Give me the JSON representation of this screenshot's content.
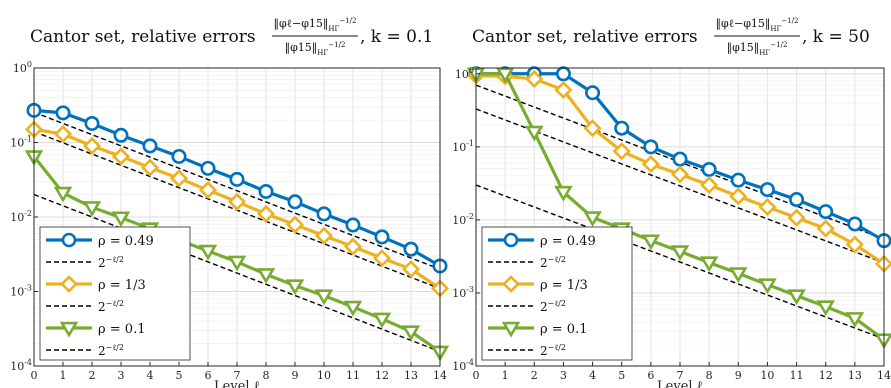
{
  "chart_data": [
    {
      "type": "line",
      "title": {
        "prefix": "Cantor set, relative errors",
        "numerator": "‖φℓ−φ15‖",
        "denominator": "‖φ15‖",
        "norm_subscript": "HΓ",
        "norm_superscript": "−1/2",
        "suffix": ", k = 0.1"
      },
      "xlabel": "Level ℓ",
      "ylabel": "",
      "xlim": [
        0,
        14
      ],
      "ylim": [
        0.0001,
        1
      ],
      "yscale": "log",
      "x_ticks": [
        0,
        1,
        2,
        3,
        4,
        5,
        6,
        7,
        8,
        9,
        10,
        11,
        12,
        13,
        14
      ],
      "y_ticks": [
        {
          "value": 0.0001,
          "base": "10",
          "exp": "-4"
        },
        {
          "value": 0.001,
          "base": "10",
          "exp": "-3"
        },
        {
          "value": 0.01,
          "base": "10",
          "exp": "-2"
        },
        {
          "value": 0.1,
          "base": "10",
          "exp": "-1"
        },
        {
          "value": 1,
          "base": "10",
          "exp": "0"
        }
      ],
      "grid": true,
      "legend_position": "bottom-left",
      "x": [
        0,
        1,
        2,
        3,
        4,
        5,
        6,
        7,
        8,
        9,
        10,
        11,
        12,
        13,
        14
      ],
      "series": [
        {
          "name": "ρ = 0.49",
          "color": "#0072BD",
          "marker": "circle",
          "values": [
            0.27,
            0.25,
            0.18,
            0.125,
            0.09,
            0.065,
            0.045,
            0.032,
            0.022,
            0.016,
            0.011,
            0.0078,
            0.0054,
            0.0037,
            0.0022
          ]
        },
        {
          "name": "ρ = 1/3",
          "color": "#EDB120",
          "marker": "diamond",
          "values": [
            0.15,
            0.13,
            0.09,
            0.065,
            0.046,
            0.033,
            0.023,
            0.016,
            0.011,
            0.0079,
            0.0056,
            0.004,
            0.0028,
            0.002,
            0.0011
          ]
        },
        {
          "name": "ρ = 0.1",
          "color": "#77AC30",
          "marker": "triangle-down",
          "values": [
            0.065,
            0.021,
            0.0135,
            0.0098,
            0.007,
            0.0049,
            0.0035,
            0.0025,
            0.0017,
            0.0012,
            0.00088,
            0.00062,
            0.00043,
            0.00029,
            0.000155
          ]
        }
      ],
      "reference_lines": [
        {
          "label": "2^(−ℓ/2)",
          "color": "#000000",
          "dashed": true,
          "c": 0.255
        },
        {
          "label": "2^(−ℓ/2)",
          "color": "#000000",
          "dashed": true,
          "c": 0.14
        },
        {
          "label": "2^(−ℓ/2)",
          "color": "#000000",
          "dashed": true,
          "c": 0.02
        }
      ]
    },
    {
      "type": "line",
      "title": {
        "prefix": "Cantor set, relative errors",
        "numerator": "‖φℓ−φ15‖",
        "denominator": "‖φ15‖",
        "norm_subscript": "HΓ",
        "norm_superscript": "−1/2",
        "suffix": ", k = 50"
      },
      "xlabel": "Level ℓ",
      "ylabel": "",
      "xlim": [
        0,
        14
      ],
      "ylim": [
        0.0001,
        1.2
      ],
      "yscale": "log",
      "x_ticks": [
        0,
        1,
        2,
        3,
        4,
        5,
        6,
        7,
        8,
        9,
        10,
        11,
        12,
        13,
        14
      ],
      "y_ticks": [
        {
          "value": 0.0001,
          "base": "10",
          "exp": "-4"
        },
        {
          "value": 0.001,
          "base": "10",
          "exp": "-3"
        },
        {
          "value": 0.01,
          "base": "10",
          "exp": "-2"
        },
        {
          "value": 0.1,
          "base": "10",
          "exp": "-1"
        },
        {
          "value": 1,
          "base": "10",
          "exp": "0"
        }
      ],
      "grid": true,
      "legend_position": "bottom-left",
      "x": [
        0,
        1,
        2,
        3,
        4,
        5,
        6,
        7,
        8,
        9,
        10,
        11,
        12,
        13,
        14
      ],
      "series": [
        {
          "name": "ρ = 0.49",
          "color": "#0072BD",
          "marker": "circle",
          "values": [
            1.0,
            1.0,
            1.0,
            1.0,
            0.55,
            0.18,
            0.1,
            0.068,
            0.049,
            0.035,
            0.026,
            0.019,
            0.013,
            0.0088,
            0.0052
          ]
        },
        {
          "name": "ρ = 1/3",
          "color": "#EDB120",
          "marker": "diamond",
          "values": [
            0.95,
            0.92,
            0.85,
            0.6,
            0.18,
            0.087,
            0.058,
            0.042,
            0.03,
            0.021,
            0.015,
            0.0107,
            0.0076,
            0.0046,
            0.0025
          ]
        },
        {
          "name": "ρ = 0.1",
          "color": "#77AC30",
          "marker": "triangle-down",
          "values": [
            1.0,
            1.0,
            0.16,
            0.024,
            0.0108,
            0.0076,
            0.0052,
            0.0037,
            0.0026,
            0.00185,
            0.0013,
            0.00092,
            0.00065,
            0.00045,
            0.00023
          ]
        }
      ],
      "reference_lines": [
        {
          "label": "2^(−ℓ/2)",
          "color": "#000000",
          "dashed": true,
          "c": 0.7
        },
        {
          "label": "2^(−ℓ/2)",
          "color": "#000000",
          "dashed": true,
          "c": 0.33
        },
        {
          "label": "2^(−ℓ/2)",
          "color": "#000000",
          "dashed": true,
          "c": 0.03
        }
      ]
    }
  ]
}
